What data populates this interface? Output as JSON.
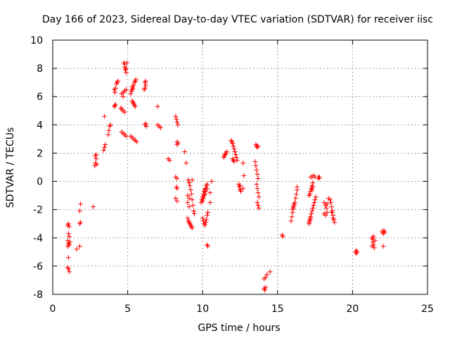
{
  "chart_data": {
    "type": "scatter",
    "title": "Day 166 of 2023, Sidereal Day-to-day VTEC variation (SDTVAR) for receiver iisc",
    "xlabel": "GPS time / hours",
    "ylabel": "SDTVAR / TECUs",
    "xlim": [
      0,
      25
    ],
    "ylim": [
      -8,
      10
    ],
    "xticks": [
      "0",
      "5",
      "10",
      "15",
      "20",
      "25"
    ],
    "yticks": [
      "-8",
      "-6",
      "-4",
      "-2",
      "0",
      "2",
      "4",
      "6",
      "8",
      "10"
    ],
    "grid": true,
    "marker": "+",
    "series": [
      {
        "name": "SDTVAR",
        "color": "#ff0000",
        "points": [
          [
            1.0,
            -3.1
          ],
          [
            1.05,
            -3.0
          ],
          [
            1.1,
            -3.2
          ],
          [
            1.05,
            -3.7
          ],
          [
            1.1,
            -3.9
          ],
          [
            1.0,
            -4.2
          ],
          [
            1.05,
            -4.4
          ],
          [
            1.1,
            -4.5
          ],
          [
            1.15,
            -4.3
          ],
          [
            1.0,
            -4.6
          ],
          [
            1.05,
            -5.4
          ],
          [
            1.0,
            -6.1
          ],
          [
            1.05,
            -6.2
          ],
          [
            1.1,
            -6.4
          ],
          [
            1.6,
            -4.8
          ],
          [
            1.8,
            -4.6
          ],
          [
            1.8,
            -3.0
          ],
          [
            1.85,
            -2.9
          ],
          [
            1.8,
            -2.1
          ],
          [
            1.85,
            -1.6
          ],
          [
            2.7,
            -1.8
          ],
          [
            2.8,
            1.1
          ],
          [
            2.85,
            1.3
          ],
          [
            2.9,
            1.6
          ],
          [
            2.85,
            1.8
          ],
          [
            2.9,
            1.9
          ],
          [
            2.95,
            1.2
          ],
          [
            3.4,
            2.2
          ],
          [
            3.45,
            2.4
          ],
          [
            3.5,
            2.6
          ],
          [
            3.45,
            4.6
          ],
          [
            3.7,
            3.3
          ],
          [
            3.75,
            3.6
          ],
          [
            3.8,
            3.9
          ],
          [
            3.85,
            4.0
          ],
          [
            4.1,
            5.3
          ],
          [
            4.15,
            5.4
          ],
          [
            4.2,
            5.4
          ],
          [
            4.15,
            6.3
          ],
          [
            4.2,
            6.6
          ],
          [
            4.25,
            6.9
          ],
          [
            4.3,
            7.0
          ],
          [
            4.35,
            7.1
          ],
          [
            4.1,
            6.5
          ],
          [
            4.6,
            3.5
          ],
          [
            4.7,
            3.4
          ],
          [
            4.8,
            3.3
          ],
          [
            4.9,
            3.2
          ],
          [
            4.55,
            5.2
          ],
          [
            4.6,
            5.1
          ],
          [
            4.7,
            5.0
          ],
          [
            4.8,
            4.9
          ],
          [
            4.6,
            6.2
          ],
          [
            4.7,
            6.3
          ],
          [
            4.8,
            6.4
          ],
          [
            4.9,
            6.5
          ],
          [
            4.7,
            6.0
          ],
          [
            4.75,
            8.4
          ],
          [
            4.8,
            8.3
          ],
          [
            4.8,
            8.1
          ],
          [
            4.85,
            7.9
          ],
          [
            4.9,
            7.7
          ],
          [
            4.85,
            7.9
          ],
          [
            4.9,
            8.0
          ],
          [
            4.95,
            8.4
          ],
          [
            5.2,
            6.2
          ],
          [
            5.25,
            6.4
          ],
          [
            5.3,
            6.5
          ],
          [
            5.35,
            6.6
          ],
          [
            5.4,
            6.8
          ],
          [
            5.45,
            7.0
          ],
          [
            5.5,
            7.1
          ],
          [
            5.55,
            7.2
          ],
          [
            5.3,
            6.7
          ],
          [
            5.3,
            5.7
          ],
          [
            5.35,
            5.6
          ],
          [
            5.4,
            5.5
          ],
          [
            5.45,
            5.4
          ],
          [
            5.5,
            5.3
          ],
          [
            5.2,
            3.2
          ],
          [
            5.3,
            3.1
          ],
          [
            5.4,
            3.0
          ],
          [
            5.5,
            2.9
          ],
          [
            5.6,
            2.8
          ],
          [
            6.1,
            6.5
          ],
          [
            6.15,
            6.6
          ],
          [
            6.2,
            6.8
          ],
          [
            6.15,
            7.0
          ],
          [
            6.2,
            7.1
          ],
          [
            6.15,
            4.0
          ],
          [
            6.2,
            4.1
          ],
          [
            6.25,
            3.9
          ],
          [
            7.0,
            5.3
          ],
          [
            7.0,
            4.0
          ],
          [
            7.1,
            3.9
          ],
          [
            7.2,
            3.8
          ],
          [
            7.7,
            1.6
          ],
          [
            7.8,
            1.5
          ],
          [
            8.2,
            4.6
          ],
          [
            8.25,
            4.4
          ],
          [
            8.3,
            4.2
          ],
          [
            8.35,
            4.0
          ],
          [
            8.3,
            2.8
          ],
          [
            8.35,
            2.7
          ],
          [
            8.3,
            2.6
          ],
          [
            8.2,
            0.3
          ],
          [
            8.3,
            0.2
          ],
          [
            8.25,
            -0.4
          ],
          [
            8.3,
            -0.5
          ],
          [
            8.2,
            -1.2
          ],
          [
            8.3,
            -1.4
          ],
          [
            8.8,
            2.1
          ],
          [
            8.9,
            1.3
          ],
          [
            9.0,
            -1.0
          ],
          [
            9.1,
            -1.2
          ],
          [
            9.0,
            -1.5
          ],
          [
            9.1,
            -1.8
          ],
          [
            9.0,
            -2.6
          ],
          [
            9.05,
            -2.8
          ],
          [
            9.1,
            -2.9
          ],
          [
            9.15,
            -3.0
          ],
          [
            9.2,
            -3.1
          ],
          [
            9.25,
            -3.2
          ],
          [
            9.3,
            -3.3
          ],
          [
            9.05,
            0.1
          ],
          [
            9.1,
            -0.1
          ],
          [
            9.15,
            -0.3
          ],
          [
            9.2,
            -0.6
          ],
          [
            9.25,
            -0.9
          ],
          [
            9.3,
            -1.3
          ],
          [
            9.35,
            -1.7
          ],
          [
            9.4,
            -2.1
          ],
          [
            9.45,
            -2.3
          ],
          [
            9.3,
            0.1
          ],
          [
            9.9,
            -1.5
          ],
          [
            9.95,
            -1.3
          ],
          [
            10.0,
            -1.1
          ],
          [
            10.05,
            -0.9
          ],
          [
            10.1,
            -0.7
          ],
          [
            10.15,
            -0.6
          ],
          [
            10.2,
            -0.5
          ],
          [
            10.25,
            -0.3
          ],
          [
            10.3,
            -0.2
          ],
          [
            10.0,
            -1.4
          ],
          [
            10.05,
            -1.2
          ],
          [
            10.1,
            -1.0
          ],
          [
            10.15,
            -0.9
          ],
          [
            10.2,
            -0.7
          ],
          [
            10.3,
            -0.5
          ],
          [
            10.0,
            -2.6
          ],
          [
            10.05,
            -2.8
          ],
          [
            10.1,
            -3.0
          ],
          [
            10.15,
            -3.1
          ],
          [
            10.2,
            -2.9
          ],
          [
            10.25,
            -2.7
          ],
          [
            10.3,
            -2.4
          ],
          [
            10.35,
            -2.2
          ],
          [
            10.3,
            -4.5
          ],
          [
            10.35,
            -4.6
          ],
          [
            10.5,
            -0.8
          ],
          [
            10.5,
            -1.5
          ],
          [
            10.6,
            0.0
          ],
          [
            11.4,
            1.7
          ],
          [
            11.45,
            1.8
          ],
          [
            11.5,
            1.9
          ],
          [
            11.55,
            2.0
          ],
          [
            11.6,
            2.1
          ],
          [
            11.9,
            2.9
          ],
          [
            11.95,
            2.8
          ],
          [
            12.0,
            2.7
          ],
          [
            12.05,
            2.5
          ],
          [
            12.1,
            2.3
          ],
          [
            12.15,
            2.1
          ],
          [
            12.2,
            1.9
          ],
          [
            12.25,
            1.7
          ],
          [
            12.3,
            1.5
          ],
          [
            12.0,
            1.6
          ],
          [
            12.05,
            1.5
          ],
          [
            12.1,
            1.4
          ],
          [
            12.4,
            -0.2
          ],
          [
            12.45,
            -0.4
          ],
          [
            12.5,
            -0.6
          ],
          [
            12.55,
            -0.7
          ],
          [
            12.5,
            -0.3
          ],
          [
            12.7,
            1.3
          ],
          [
            12.75,
            0.4
          ],
          [
            12.7,
            -0.5
          ],
          [
            13.5,
            1.4
          ],
          [
            13.55,
            1.1
          ],
          [
            13.6,
            0.8
          ],
          [
            13.65,
            0.5
          ],
          [
            13.7,
            0.2
          ],
          [
            13.6,
            -0.2
          ],
          [
            13.65,
            -0.5
          ],
          [
            13.7,
            -0.8
          ],
          [
            13.75,
            -1.1
          ],
          [
            13.65,
            -1.5
          ],
          [
            13.7,
            -1.7
          ],
          [
            13.75,
            -1.9
          ],
          [
            13.55,
            2.6
          ],
          [
            13.6,
            2.5
          ],
          [
            13.65,
            2.4
          ],
          [
            13.7,
            2.5
          ],
          [
            14.1,
            -6.9
          ],
          [
            14.2,
            -6.8
          ],
          [
            14.3,
            -6.6
          ],
          [
            14.5,
            -6.4
          ],
          [
            14.1,
            -7.6
          ],
          [
            14.15,
            -7.7
          ],
          [
            14.2,
            -7.5
          ],
          [
            15.3,
            -3.8
          ],
          [
            15.35,
            -3.9
          ],
          [
            15.9,
            -2.8
          ],
          [
            15.95,
            -2.5
          ],
          [
            16.0,
            -2.2
          ],
          [
            16.05,
            -1.9
          ],
          [
            16.1,
            -1.7
          ],
          [
            16.15,
            -1.5
          ],
          [
            16.2,
            -1.2
          ],
          [
            16.25,
            -0.9
          ],
          [
            16.3,
            -0.6
          ],
          [
            16.3,
            -0.4
          ],
          [
            16.0,
            -2.0
          ],
          [
            16.05,
            -1.8
          ],
          [
            16.1,
            -1.6
          ],
          [
            17.1,
            -2.9
          ],
          [
            17.15,
            -2.7
          ],
          [
            17.2,
            -2.5
          ],
          [
            17.25,
            -2.3
          ],
          [
            17.3,
            -2.1
          ],
          [
            17.35,
            -1.9
          ],
          [
            17.4,
            -1.7
          ],
          [
            17.45,
            -1.5
          ],
          [
            17.5,
            -1.3
          ],
          [
            17.55,
            -1.1
          ],
          [
            17.1,
            -3.0
          ],
          [
            17.15,
            -2.8
          ],
          [
            17.2,
            -2.6
          ],
          [
            17.1,
            -1.0
          ],
          [
            17.15,
            -0.9
          ],
          [
            17.2,
            -0.7
          ],
          [
            17.25,
            -0.5
          ],
          [
            17.3,
            -0.3
          ],
          [
            17.35,
            -0.1
          ],
          [
            17.3,
            -0.6
          ],
          [
            17.35,
            -0.4
          ],
          [
            17.2,
            0.3
          ],
          [
            17.3,
            0.3
          ],
          [
            17.4,
            0.4
          ],
          [
            17.5,
            0.3
          ],
          [
            17.7,
            0.3
          ],
          [
            17.8,
            0.3
          ],
          [
            17.75,
            0.2
          ],
          [
            18.1,
            -1.5
          ],
          [
            18.2,
            -1.7
          ],
          [
            18.25,
            -1.9
          ],
          [
            18.3,
            -1.6
          ],
          [
            18.1,
            -2.3
          ],
          [
            18.2,
            -2.4
          ],
          [
            18.3,
            -2.2
          ],
          [
            18.4,
            -1.2
          ],
          [
            18.5,
            -1.3
          ],
          [
            18.55,
            -1.5
          ],
          [
            18.6,
            -1.8
          ],
          [
            18.65,
            -2.1
          ],
          [
            18.7,
            -2.4
          ],
          [
            18.75,
            -2.7
          ],
          [
            18.8,
            -2.9
          ],
          [
            18.6,
            -2.2
          ],
          [
            18.7,
            -2.6
          ],
          [
            20.2,
            -5.0
          ],
          [
            20.25,
            -5.1
          ],
          [
            20.3,
            -5.0
          ],
          [
            20.25,
            -4.9
          ],
          [
            21.3,
            -4.0
          ],
          [
            21.35,
            -4.3
          ],
          [
            21.4,
            -4.5
          ],
          [
            21.45,
            -4.7
          ],
          [
            21.3,
            -4.6
          ],
          [
            21.4,
            -3.9
          ],
          [
            21.5,
            -4.2
          ],
          [
            21.35,
            -4.1
          ],
          [
            22.0,
            -3.6
          ],
          [
            22.05,
            -3.7
          ],
          [
            22.1,
            -3.5
          ],
          [
            22.15,
            -3.6
          ],
          [
            22.0,
            -3.5
          ],
          [
            22.05,
            -4.6
          ]
        ]
      }
    ]
  }
}
